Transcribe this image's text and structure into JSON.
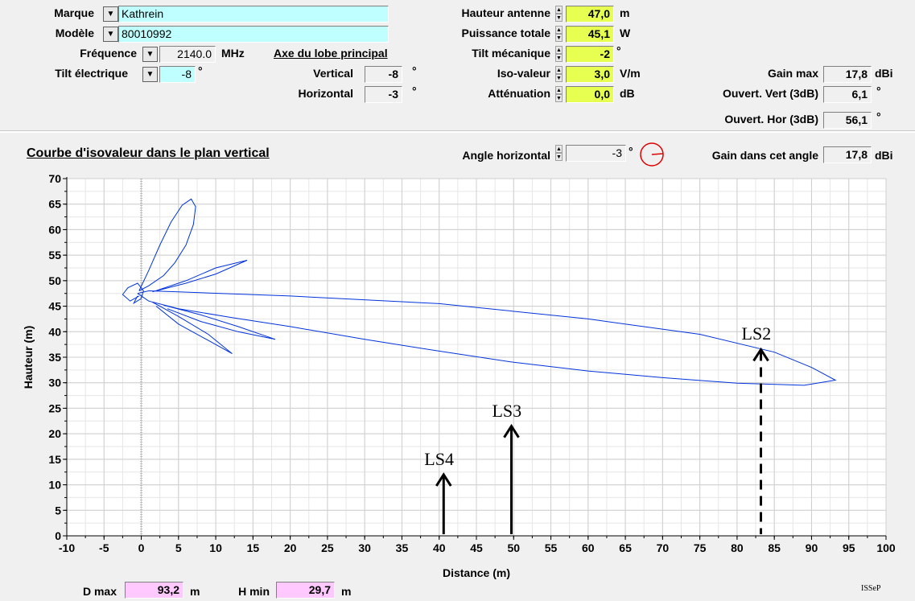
{
  "top": {
    "marque": {
      "label": "Marque",
      "value": "Kathrein"
    },
    "modele": {
      "label": "Modèle",
      "value": "80010992"
    },
    "frequence": {
      "label": "Fréquence",
      "value": "2140.0",
      "unit": "MHz"
    },
    "tilt_electrique": {
      "label": "Tilt électrique",
      "value": "-8",
      "unit": "°"
    },
    "axe_lobe": {
      "title": "Axe du lobe principal",
      "vertical_label": "Vertical",
      "vertical_value": "-8",
      "horizontal_label": "Horizontal",
      "horizontal_value": "-3",
      "unit": "°"
    },
    "hauteur_antenne": {
      "label": "Hauteur antenne",
      "value": "47,0",
      "unit": "m"
    },
    "puissance_totale": {
      "label": "Puissance totale",
      "value": "45,1",
      "unit": "W"
    },
    "tilt_mecanique": {
      "label": "Tilt mécanique",
      "value": "-2",
      "unit": "°"
    },
    "iso_valeur": {
      "label": "Iso-valeur",
      "value": "3,0",
      "unit": "V/m"
    },
    "attenuation": {
      "label": "Atténuation",
      "value": "0,0",
      "unit": "dB"
    },
    "gain_max": {
      "label": "Gain max",
      "value": "17,8",
      "unit": "dBi"
    },
    "ouvert_vert": {
      "label": "Ouvert. Vert (3dB)",
      "value": "6,1",
      "unit": "°"
    },
    "ouvert_hor": {
      "label": "Ouvert. Hor (3dB)",
      "value": "56,1",
      "unit": "°"
    }
  },
  "plot_header": {
    "title": "Courbe d'isovaleur dans le plan vertical",
    "angle_horizontal": {
      "label": "Angle horizontal",
      "value": "-3",
      "unit": "°"
    },
    "gain_angle": {
      "label": "Gain dans cet angle",
      "value": "17,8",
      "unit": "dBi"
    }
  },
  "chart_data": {
    "type": "line",
    "xlabel": "Distance (m)",
    "ylabel": "Hauteur (m)",
    "xlim": [
      -10,
      100
    ],
    "ylim": [
      0,
      70
    ],
    "xticks": [
      -10,
      -5,
      0,
      5,
      10,
      15,
      20,
      25,
      30,
      35,
      40,
      45,
      50,
      55,
      60,
      65,
      70,
      75,
      80,
      85,
      90,
      95,
      100
    ],
    "yticks": [
      0,
      5,
      10,
      15,
      20,
      25,
      30,
      35,
      40,
      45,
      50,
      55,
      60,
      65,
      70
    ],
    "grid": true,
    "series": [
      {
        "color": "#0033dd",
        "points": [
          [
            -0.5,
            47.5
          ],
          [
            1,
            48
          ],
          [
            5,
            47.8
          ],
          [
            20,
            47
          ],
          [
            40,
            45.5
          ],
          [
            60,
            42.5
          ],
          [
            75,
            39.5
          ],
          [
            85,
            36
          ],
          [
            90,
            33
          ],
          [
            93.2,
            30.5
          ],
          [
            89,
            29.5
          ],
          [
            80,
            29.9
          ],
          [
            70,
            31
          ],
          [
            60,
            32.3
          ],
          [
            50,
            34
          ],
          [
            40,
            36.2
          ],
          [
            30,
            38.5
          ],
          [
            20,
            41
          ],
          [
            12,
            42.8
          ],
          [
            5,
            44.5
          ],
          [
            1,
            46
          ],
          [
            -0.5,
            47.5
          ]
        ]
      },
      {
        "color": "#0033dd",
        "points": [
          [
            -0.3,
            48
          ],
          [
            1,
            52
          ],
          [
            2.5,
            57
          ],
          [
            4,
            61.5
          ],
          [
            5.5,
            64.8
          ],
          [
            6.7,
            66
          ],
          [
            7.3,
            64.5
          ],
          [
            7,
            61
          ],
          [
            6,
            57
          ],
          [
            4.5,
            53.5
          ],
          [
            3,
            51
          ],
          [
            1,
            49
          ],
          [
            -0.3,
            48
          ]
        ]
      },
      {
        "color": "#0033dd",
        "points": [
          [
            1.5,
            47.8
          ],
          [
            6,
            50
          ],
          [
            10,
            52.5
          ],
          [
            14.2,
            54
          ],
          [
            10,
            51.3
          ],
          [
            6,
            49.5
          ],
          [
            2,
            48
          ]
        ]
      },
      {
        "color": "#0033dd",
        "points": [
          [
            1.5,
            45.8
          ],
          [
            5,
            43
          ],
          [
            9,
            39.5
          ],
          [
            12.2,
            35.7
          ],
          [
            9,
            38.3
          ],
          [
            5,
            41.5
          ],
          [
            2,
            45
          ]
        ]
      },
      {
        "color": "#0033dd",
        "points": [
          [
            3,
            45.2
          ],
          [
            8,
            43.3
          ],
          [
            13,
            41
          ],
          [
            18,
            38.5
          ],
          [
            13,
            40
          ],
          [
            8,
            42
          ],
          [
            3.5,
            44.5
          ]
        ]
      },
      {
        "color": "#0033dd",
        "points": [
          [
            -0.3,
            47
          ],
          [
            -1.5,
            46
          ],
          [
            -2.5,
            47.3
          ],
          [
            -1.8,
            48.6
          ],
          [
            -0.5,
            49.5
          ],
          [
            0.3,
            48
          ],
          [
            0,
            46.5
          ],
          [
            -1,
            45.6
          ],
          [
            -0.5,
            47
          ]
        ]
      }
    ],
    "annotations": [
      {
        "label": "LS2",
        "x": 83.2,
        "y_top": 36.5,
        "style": "dashed"
      },
      {
        "label": "LS3",
        "x": 49.7,
        "y_top": 21.5,
        "style": "solid"
      },
      {
        "label": "LS4",
        "x": 40.6,
        "y_top": 12,
        "style": "solid"
      }
    ]
  },
  "bottom": {
    "dmax": {
      "label": "D max",
      "value": "93,2",
      "unit": "m"
    },
    "hmin": {
      "label": "H min",
      "value": "29,7",
      "unit": "m"
    },
    "credit": "ISSeP"
  },
  "icons": {
    "dropdown": "triangle-down-icon",
    "spinner": "updown-arrows-icon",
    "angle": "circle-angle-icon"
  }
}
